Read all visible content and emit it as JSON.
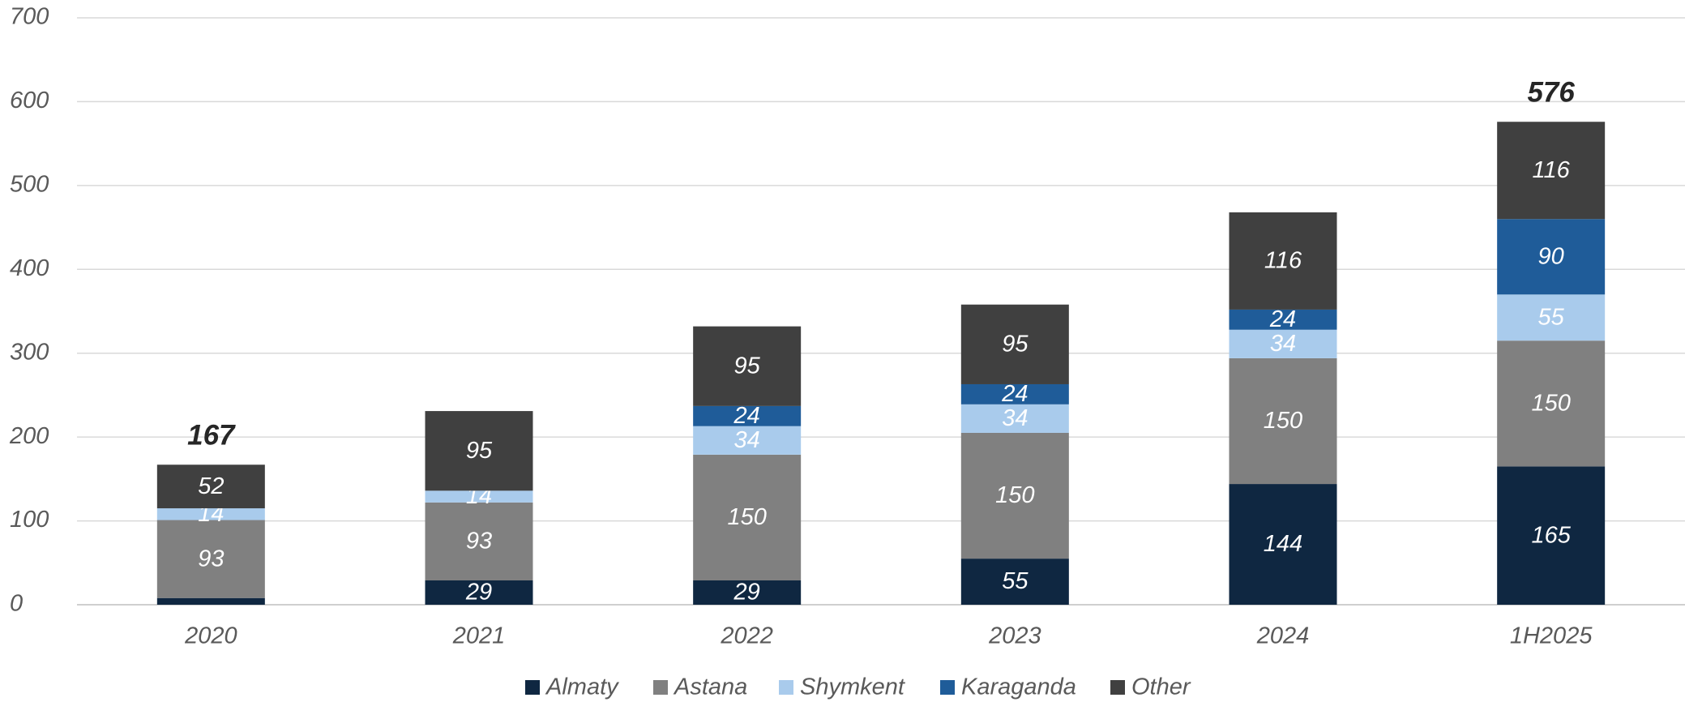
{
  "chart_data": {
    "type": "stacked_bar",
    "categories": [
      "2020",
      "2021",
      "2022",
      "2023",
      "2024",
      "1H2025"
    ],
    "series": [
      {
        "name": "Almaty",
        "color": "#0f2741",
        "values": [
          8,
          29,
          29,
          55,
          144,
          165
        ],
        "value_labels": [
          null,
          "29",
          "29",
          "55",
          "144",
          "165"
        ]
      },
      {
        "name": "Astana",
        "color": "#808080",
        "values": [
          93,
          93,
          150,
          150,
          150,
          150
        ]
      },
      {
        "name": "Shymkent",
        "color": "#a9cbec",
        "values": [
          14,
          14,
          34,
          34,
          34,
          55
        ]
      },
      {
        "name": "Karaganda",
        "color": "#1f5c99",
        "values": [
          null,
          null,
          24,
          24,
          24,
          90
        ]
      },
      {
        "name": "Other",
        "color": "#404040",
        "values": [
          52,
          95,
          95,
          95,
          116,
          116
        ]
      }
    ],
    "totals": [
      167,
      null,
      null,
      null,
      null,
      576
    ],
    "ylim": [
      0,
      700
    ],
    "yticks": [
      0,
      100,
      200,
      300,
      400,
      500,
      600,
      700
    ],
    "grid": true
  }
}
